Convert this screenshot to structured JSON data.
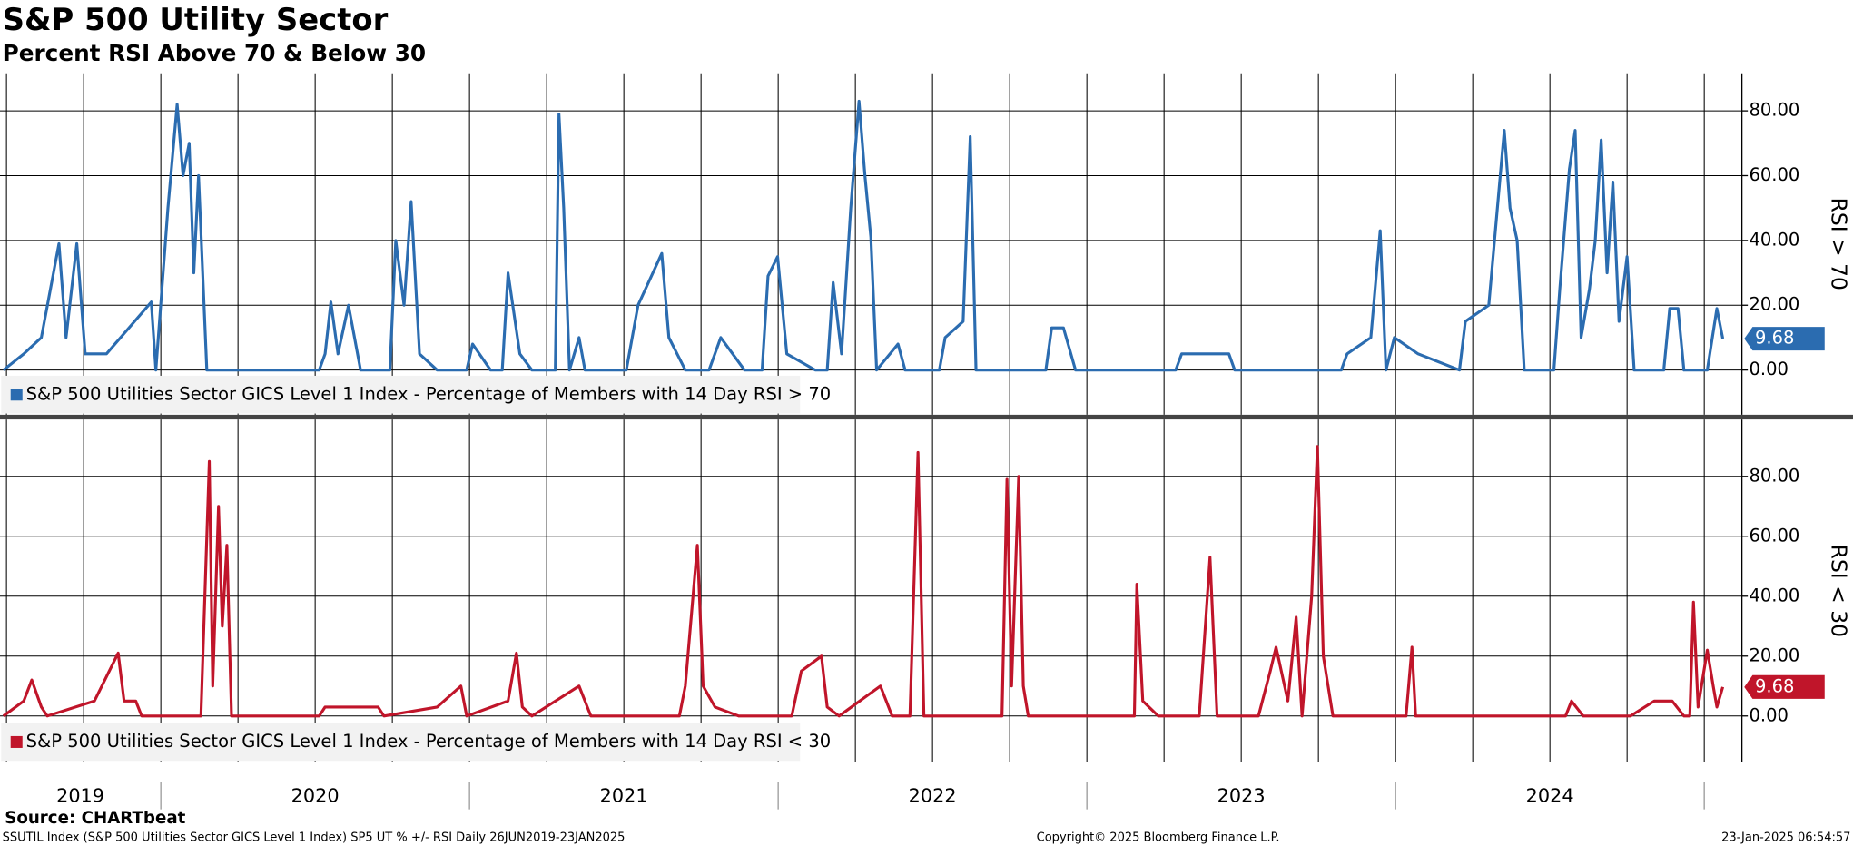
{
  "title": "S&P 500 Utility Sector",
  "subtitle": "Percent RSI Above 70 & Below 30",
  "chart_data": [
    {
      "type": "line",
      "axis_label": "RSI > 70",
      "xlim": [
        2019.479,
        2025.122
      ],
      "xgrid": [
        2019.5,
        2019.75,
        2020,
        2020.25,
        2020.5,
        2020.75,
        2021,
        2021.25,
        2021.5,
        2021.75,
        2022,
        2022.25,
        2022.5,
        2022.75,
        2023,
        2023.25,
        2023.5,
        2023.75,
        2024,
        2024.25,
        2024.5,
        2024.75,
        2025
      ],
      "ylim": [
        -13.8,
        91.6
      ],
      "yticks": [
        {
          "value": 0,
          "label": "0.00"
        },
        {
          "value": 20,
          "label": "20.00"
        },
        {
          "value": 40,
          "label": "40.00"
        },
        {
          "value": 60,
          "label": "60.00"
        },
        {
          "value": 80,
          "label": "80.00"
        }
      ],
      "grid": true,
      "series": [
        {
          "name": "S&P 500 Utilities Sector GICS Level 1 Index - Percentage of Members with 14 Day RSI > 70",
          "color": "#2b6cb0",
          "x": [
            2019.49,
            2019.556,
            2019.613,
            2019.67,
            2019.693,
            2019.728,
            2019.755,
            2019.824,
            2019.969,
            2019.984,
            2020.023,
            2020.053,
            2020.072,
            2020.092,
            2020.107,
            2020.122,
            2020.149,
            2020.513,
            2020.532,
            2020.551,
            2020.574,
            2020.608,
            2020.647,
            2020.742,
            2020.761,
            2020.788,
            2020.811,
            2020.838,
            2020.895,
            2020.991,
            2021.01,
            2021.068,
            2021.106,
            2021.125,
            2021.163,
            2021.202,
            2021.278,
            2021.29,
            2021.305,
            2021.324,
            2021.355,
            2021.374,
            2021.508,
            2021.546,
            2021.623,
            2021.646,
            2021.699,
            2021.776,
            2021.814,
            2021.891,
            2021.948,
            2021.967,
            2021.998,
            2022.028,
            2022.12,
            2022.159,
            2022.178,
            2022.205,
            2022.235,
            2022.262,
            2022.281,
            2022.3,
            2022.319,
            2022.388,
            2022.411,
            2022.522,
            2022.541,
            2022.599,
            2022.622,
            2022.641,
            2022.867,
            2022.886,
            2022.924,
            2022.963,
            2023.288,
            2023.307,
            2023.46,
            2023.479,
            2023.824,
            2023.843,
            2023.92,
            2023.95,
            2023.969,
            2023.996,
            2024.073,
            2024.207,
            2024.226,
            2024.302,
            2024.352,
            2024.371,
            2024.394,
            2024.417,
            2024.513,
            2024.532,
            2024.563,
            2024.582,
            2024.601,
            2024.628,
            2024.647,
            2024.666,
            2024.685,
            2024.704,
            2024.724,
            2024.75,
            2024.773,
            2024.869,
            2024.888,
            2024.915,
            2024.934,
            2025.01,
            2025.041,
            2025.06
          ],
          "values": [
            0,
            5,
            10,
            39,
            10,
            39,
            5,
            5,
            21,
            0,
            50,
            82,
            60,
            70,
            30,
            60,
            0,
            0,
            5,
            21,
            5,
            20,
            0,
            0,
            40,
            20,
            52,
            5,
            0,
            0,
            8,
            0,
            0,
            30,
            5,
            0,
            0,
            79,
            50,
            0,
            10,
            0,
            0,
            20,
            36,
            10,
            0,
            0,
            10,
            0,
            0,
            29,
            35,
            5,
            0,
            0,
            27,
            5,
            50,
            83,
            60,
            41,
            0,
            8,
            0,
            0,
            10,
            15,
            72,
            0,
            0,
            13,
            13,
            0,
            0,
            5,
            5,
            0,
            0,
            5,
            10,
            43,
            0,
            10,
            5,
            0,
            15,
            20,
            74,
            50,
            40,
            0,
            0,
            25,
            62,
            74,
            10,
            25,
            40,
            71,
            30,
            58,
            15,
            35,
            0,
            0,
            19,
            19,
            0,
            0,
            19,
            9.68
          ]
        }
      ]
    },
    {
      "type": "line",
      "axis_label": "RSI < 30",
      "xlim": [
        2019.479,
        2025.122
      ],
      "xgrid": [
        2019.5,
        2019.75,
        2020,
        2020.25,
        2020.5,
        2020.75,
        2021,
        2021.25,
        2021.5,
        2021.75,
        2022,
        2022.25,
        2022.5,
        2022.75,
        2023,
        2023.25,
        2023.5,
        2023.75,
        2024,
        2024.25,
        2024.5,
        2024.75,
        2025
      ],
      "xticks": [
        2020,
        2021,
        2022,
        2023,
        2024,
        2025
      ],
      "year_labels": [
        2019,
        2020,
        2021,
        2022,
        2023,
        2024
      ],
      "ylim": [
        -15.4,
        99
      ],
      "yticks": [
        {
          "value": 0,
          "label": "0.00"
        },
        {
          "value": 20,
          "label": "20.00"
        },
        {
          "value": 40,
          "label": "40.00"
        },
        {
          "value": 60,
          "label": "60.00"
        },
        {
          "value": 80,
          "label": "80.00"
        }
      ],
      "grid": true,
      "series": [
        {
          "name": "S&P 500 Utilities Sector GICS Level 1 Index - Percentage of Members with 14 Day RSI < 30",
          "color": "#c0152a",
          "x": [
            2019.49,
            2019.556,
            2019.582,
            2019.613,
            2019.632,
            2019.785,
            2019.862,
            2019.881,
            2019.919,
            2019.938,
            2020.13,
            2020.157,
            2020.168,
            2020.187,
            2020.199,
            2020.214,
            2020.229,
            2020.513,
            2020.532,
            2020.704,
            2020.723,
            2020.895,
            2020.972,
            2020.991,
            2021.125,
            2021.152,
            2021.171,
            2021.202,
            2021.355,
            2021.393,
            2021.68,
            2021.699,
            2021.738,
            2021.757,
            2021.795,
            2021.872,
            2022.044,
            2022.075,
            2022.14,
            2022.159,
            2022.197,
            2022.331,
            2022.369,
            2022.427,
            2022.453,
            2022.472,
            2022.725,
            2022.741,
            2022.756,
            2022.779,
            2022.794,
            2022.81,
            2023.154,
            2023.162,
            2023.181,
            2023.231,
            2023.364,
            2023.399,
            2023.422,
            2023.556,
            2023.594,
            2023.613,
            2023.651,
            2023.678,
            2023.697,
            2023.728,
            2023.747,
            2023.766,
            2023.797,
            2024.034,
            2024.053,
            2024.065,
            2024.551,
            2024.57,
            2024.608,
            2024.761,
            2024.838,
            2024.896,
            2024.934,
            2024.953,
            2024.965,
            2024.98,
            2025.01,
            2025.029,
            2025.041,
            2025.06
          ],
          "values": [
            0,
            5,
            12,
            3,
            0,
            5,
            21,
            5,
            5,
            0,
            0,
            85,
            10,
            70,
            30,
            57,
            0,
            0,
            3,
            3,
            0,
            3,
            10,
            0,
            5,
            21,
            3,
            0,
            10,
            0,
            0,
            10,
            57,
            10,
            3,
            0,
            0,
            15,
            20,
            3,
            0,
            10,
            0,
            0,
            88,
            0,
            0,
            79,
            10,
            80,
            10,
            0,
            0,
            44,
            5,
            0,
            0,
            53,
            0,
            0,
            15,
            23,
            5,
            33,
            0,
            40,
            90,
            20,
            0,
            0,
            23,
            0,
            0,
            5,
            0,
            0,
            5,
            5,
            0,
            0,
            38,
            3,
            22,
            10,
            3,
            9.68
          ]
        }
      ]
    }
  ],
  "footer": {
    "source": "Source: CHARTbeat",
    "description": "SSUTIL Index (S&P 500 Utilities Sector GICS Level 1 Index) SP5 UT % +/- RSI  Daily 26JUN2019-23JAN2025",
    "copyright": "Copyright© 2025 Bloomberg Finance L.P.",
    "timestamp": "23-Jan-2025 06:54:57"
  }
}
